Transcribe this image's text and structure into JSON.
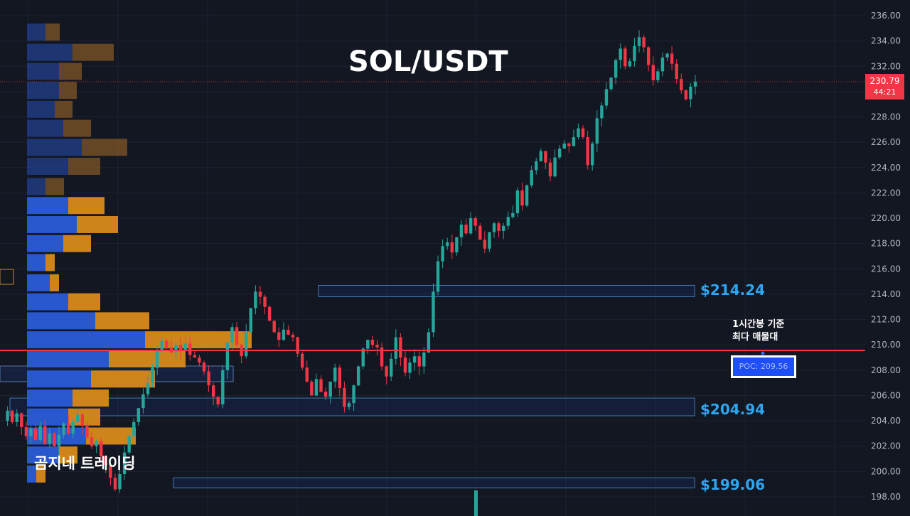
{
  "title": "SOL/USDT",
  "watermark": "곰지네 트레이딩",
  "poc_note_line1": "1시간봉 기준",
  "poc_note_line2": "최다 매물대",
  "poc_label": "POC: 209.56",
  "current_price": "230.79",
  "countdown": "44:21",
  "levels": [
    "$214.24",
    "$204.94",
    "$199.06"
  ],
  "colors": {
    "background": "#131722",
    "up": "#26a69a",
    "down": "#f23645",
    "poc_line": "#f23645",
    "level_text": "#2ea7f2",
    "vp_buy": "#2a5bd7",
    "vp_sell": "#d88a1a"
  },
  "chart_data": {
    "type": "candlestick",
    "title": "SOL/USDT",
    "ylim": [
      197.5,
      236.5
    ],
    "y_ticks": [
      "236.00",
      "234.00",
      "232.00",
      "230.00",
      "228.00",
      "226.00",
      "224.00",
      "222.00",
      "220.00",
      "218.00",
      "216.00",
      "214.00",
      "212.00",
      "210.00",
      "208.00",
      "206.00",
      "204.00",
      "202.00",
      "200.00",
      "198.00"
    ],
    "grid": true,
    "poc": 209.56,
    "last_price": 230.79,
    "zones": [
      {
        "label": "$214.24",
        "low": 213.8,
        "high": 214.7
      },
      {
        "label": "$204.94",
        "low": 204.4,
        "high": 205.8
      },
      {
        "label": "$199.06",
        "low": 198.7,
        "high": 199.5
      }
    ],
    "close_path": [
      204.0,
      204.8,
      203.9,
      204.6,
      203.5,
      202.8,
      203.4,
      202.5,
      203.6,
      202.2,
      203.0,
      202.0,
      202.9,
      203.8,
      203.0,
      203.9,
      204.5,
      203.6,
      202.7,
      202.0,
      202.4,
      201.2,
      200.5,
      199.5,
      198.6,
      199.8,
      201.5,
      202.8,
      203.9,
      205.0,
      206.1,
      207.0,
      208.2,
      209.6,
      210.3,
      209.8,
      209.4,
      210.0,
      209.5,
      210.1,
      209.2,
      209.0,
      208.6,
      207.9,
      206.8,
      205.9,
      205.3,
      208.0,
      210.2,
      211.4,
      210.0,
      209.1,
      211.0,
      212.9,
      214.2,
      213.8,
      213.0,
      211.9,
      211.0,
      210.4,
      211.2,
      210.8,
      210.6,
      209.3,
      208.2,
      207.1,
      206.0,
      207.3,
      206.3,
      205.9,
      207.1,
      208.2,
      206.6,
      205.1,
      205.4,
      206.8,
      208.3,
      209.7,
      210.4,
      210.0,
      209.8,
      208.3,
      207.5,
      208.9,
      210.6,
      209.0,
      207.8,
      208.6,
      209.1,
      208.3,
      209.4,
      211.0,
      214.2,
      216.6,
      217.8,
      218.1,
      217.3,
      218.5,
      219.5,
      218.8,
      220.0,
      219.4,
      218.3,
      217.6,
      218.9,
      219.6,
      219.0,
      219.4,
      220.1,
      220.4,
      222.2,
      221.0,
      222.6,
      223.8,
      224.5,
      225.3,
      224.4,
      223.3,
      224.8,
      225.5,
      225.9,
      225.7,
      226.4,
      227.1,
      226.4,
      224.2,
      225.9,
      227.9,
      228.9,
      230.2,
      231.1,
      232.5,
      233.4,
      232.0,
      232.4,
      233.6,
      234.3,
      233.5,
      232.1,
      230.9,
      231.6,
      232.7,
      233.0,
      232.2,
      231.0,
      230.1,
      229.4,
      230.4,
      230.79
    ],
    "volume_profile": [
      {
        "price": 234.7,
        "buy": 26,
        "sell": 20
      },
      {
        "price": 233.1,
        "buy": 64,
        "sell": 58
      },
      {
        "price": 231.6,
        "buy": 45,
        "sell": 32
      },
      {
        "price": 230.1,
        "buy": 45,
        "sell": 25
      },
      {
        "price": 228.6,
        "buy": 39,
        "sell": 25
      },
      {
        "price": 227.1,
        "buy": 51,
        "sell": 39
      },
      {
        "price": 225.6,
        "buy": 77,
        "sell": 64
      },
      {
        "price": 224.1,
        "buy": 58,
        "sell": 45
      },
      {
        "price": 222.5,
        "buy": 26,
        "sell": 26
      },
      {
        "price": 221.0,
        "buy": 58,
        "sell": 51
      },
      {
        "price": 219.5,
        "buy": 70,
        "sell": 58
      },
      {
        "price": 218.0,
        "buy": 51,
        "sell": 39
      },
      {
        "price": 216.5,
        "buy": 26,
        "sell": 13
      },
      {
        "price": 214.9,
        "buy": 32,
        "sell": 13
      },
      {
        "price": 213.4,
        "buy": 58,
        "sell": 45
      },
      {
        "price": 211.9,
        "buy": 96,
        "sell": 76
      },
      {
        "price": 210.4,
        "buy": 166,
        "sell": 150
      },
      {
        "price": 208.9,
        "buy": 115,
        "sell": 108
      },
      {
        "price": 207.3,
        "buy": 90,
        "sell": 90
      },
      {
        "price": 205.8,
        "buy": 64,
        "sell": 51
      },
      {
        "price": 204.3,
        "buy": 58,
        "sell": 45
      },
      {
        "price": 202.8,
        "buy": 83,
        "sell": 70
      },
      {
        "price": 201.3,
        "buy": 45,
        "sell": 26
      },
      {
        "price": 199.8,
        "buy": 13,
        "sell": 13
      }
    ]
  }
}
